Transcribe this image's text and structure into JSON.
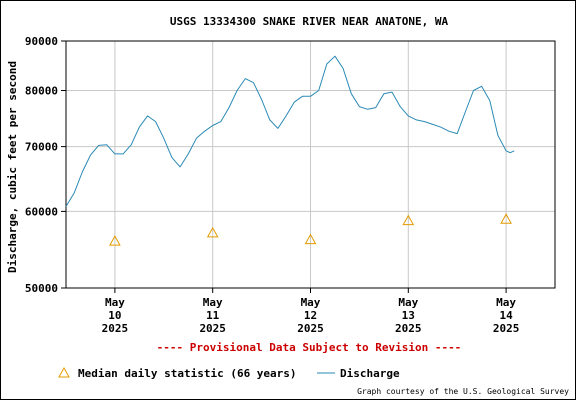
{
  "chart_data": {
    "type": "line",
    "title": "USGS 13334300 SNAKE RIVER NEAR ANATONE, WA",
    "ylabel": "Discharge, cubic feet per second",
    "y_scale": "log",
    "ylim": [
      50000,
      90000
    ],
    "y_ticks": [
      "90000",
      "80000",
      "70000",
      "60000",
      "50000"
    ],
    "y_tick_values": [
      90000,
      80000,
      70000,
      60000,
      50000
    ],
    "x_range": [
      "2025-05-09 12:00",
      "2025-05-14 12:00"
    ],
    "x_tick_labels": [
      {
        "month": "May",
        "day": "10",
        "year": "2025",
        "x": "2025-05-10 00:00"
      },
      {
        "month": "May",
        "day": "11",
        "year": "2025",
        "x": "2025-05-11 00:00"
      },
      {
        "month": "May",
        "day": "12",
        "year": "2025",
        "x": "2025-05-12 00:00"
      },
      {
        "month": "May",
        "day": "13",
        "year": "2025",
        "x": "2025-05-13 00:00"
      },
      {
        "month": "May",
        "day": "14",
        "year": "2025",
        "x": "2025-05-14 00:00"
      }
    ],
    "grid": true,
    "series": [
      {
        "name": "Discharge",
        "color": "#2a8ab5",
        "points": [
          [
            "2025-05-09 12:00",
            60700
          ],
          [
            "2025-05-09 14:00",
            62700
          ],
          [
            "2025-05-09 16:00",
            65900
          ],
          [
            "2025-05-09 18:00",
            68600
          ],
          [
            "2025-05-09 20:00",
            70200
          ],
          [
            "2025-05-09 22:00",
            70300
          ],
          [
            "2025-05-10 00:00",
            68800
          ],
          [
            "2025-05-10 02:00",
            68800
          ],
          [
            "2025-05-10 04:00",
            70300
          ],
          [
            "2025-05-10 06:00",
            73300
          ],
          [
            "2025-05-10 08:00",
            75300
          ],
          [
            "2025-05-10 10:00",
            74300
          ],
          [
            "2025-05-10 12:00",
            71400
          ],
          [
            "2025-05-10 14:00",
            68200
          ],
          [
            "2025-05-10 16:00",
            66700
          ],
          [
            "2025-05-10 18:00",
            68800
          ],
          [
            "2025-05-10 20:00",
            71400
          ],
          [
            "2025-05-10 22:00",
            72600
          ],
          [
            "2025-05-11 00:00",
            73600
          ],
          [
            "2025-05-11 02:00",
            74300
          ],
          [
            "2025-05-11 04:00",
            76800
          ],
          [
            "2025-05-11 06:00",
            80000
          ],
          [
            "2025-05-11 08:00",
            82300
          ],
          [
            "2025-05-11 10:00",
            81500
          ],
          [
            "2025-05-11 12:00",
            78300
          ],
          [
            "2025-05-11 14:00",
            74600
          ],
          [
            "2025-05-11 16:00",
            73100
          ],
          [
            "2025-05-11 18:00",
            75300
          ],
          [
            "2025-05-11 20:00",
            77800
          ],
          [
            "2025-05-11 22:00",
            78900
          ],
          [
            "2025-05-12 00:00",
            78900
          ],
          [
            "2025-05-12 02:00",
            80000
          ],
          [
            "2025-05-12 04:00",
            85200
          ],
          [
            "2025-05-12 06:00",
            86800
          ],
          [
            "2025-05-12 08:00",
            84300
          ],
          [
            "2025-05-12 10:00",
            79400
          ],
          [
            "2025-05-12 12:00",
            77000
          ],
          [
            "2025-05-12 14:00",
            76500
          ],
          [
            "2025-05-12 16:00",
            76800
          ],
          [
            "2025-05-12 18:00",
            79400
          ],
          [
            "2025-05-12 20:00",
            79700
          ],
          [
            "2025-05-12 22:00",
            77000
          ],
          [
            "2025-05-13 00:00",
            75300
          ],
          [
            "2025-05-13 02:00",
            74600
          ],
          [
            "2025-05-13 04:00",
            74300
          ],
          [
            "2025-05-13 06:00",
            73800
          ],
          [
            "2025-05-13 08:00",
            73300
          ],
          [
            "2025-05-13 10:00",
            72600
          ],
          [
            "2025-05-13 12:00",
            72200
          ],
          [
            "2025-05-13 14:00",
            76000
          ],
          [
            "2025-05-13 16:00",
            80000
          ],
          [
            "2025-05-13 18:00",
            80800
          ],
          [
            "2025-05-13 20:00",
            78100
          ],
          [
            "2025-05-13 22:00",
            71900
          ],
          [
            "2025-05-14 00:00",
            69300
          ],
          [
            "2025-05-14 01:00",
            69000
          ],
          [
            "2025-05-14 02:00",
            69300
          ]
        ]
      }
    ],
    "medians": {
      "name": "Median daily statistic (66 years)",
      "color": "#e39b00",
      "points": [
        [
          "2025-05-10 00:00",
          55900
        ],
        [
          "2025-05-11 00:00",
          57000
        ],
        [
          "2025-05-12 00:00",
          56100
        ],
        [
          "2025-05-13 00:00",
          58700
        ],
        [
          "2025-05-14 00:00",
          58900
        ]
      ]
    },
    "notice": "---- Provisional Data Subject to Revision ----",
    "notice_color": "#cc0000",
    "credit": "Graph courtesy of the U.S. Geological Survey"
  },
  "legend": {
    "median_label": "Median daily statistic (66 years)",
    "discharge_label": "Discharge"
  }
}
